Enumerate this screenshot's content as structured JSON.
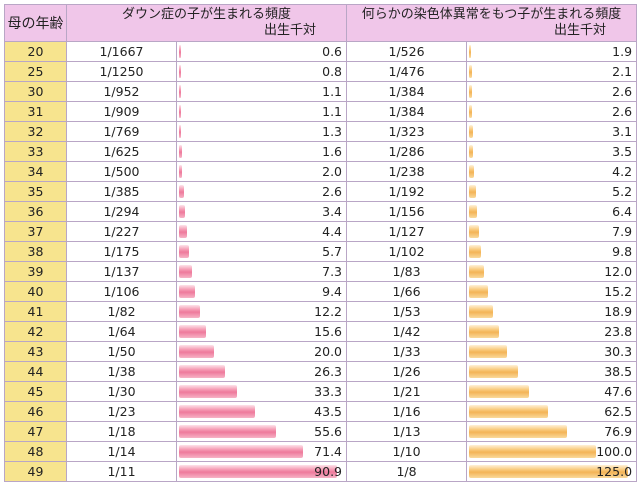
{
  "headers": {
    "age": "母の年齢",
    "down": "ダウン症の子が生まれる頻度",
    "other": "何らかの染色体異常をもつ子が生まれる頻度",
    "unit": "出生千対"
  },
  "colors": {
    "header_bg": "#f0c6e9",
    "age_bg": "#f7e48e",
    "down_bar": "#ee7a9c",
    "other_bar": "#f3b457"
  },
  "rows": [
    {
      "age": "20",
      "down_ratio": "1/1667",
      "down_value": "0.6",
      "other_ratio": "1/526",
      "other_value": "1.9"
    },
    {
      "age": "25",
      "down_ratio": "1/1250",
      "down_value": "0.8",
      "other_ratio": "1/476",
      "other_value": "2.1"
    },
    {
      "age": "30",
      "down_ratio": "1/952",
      "down_value": "1.1",
      "other_ratio": "1/384",
      "other_value": "2.6"
    },
    {
      "age": "31",
      "down_ratio": "1/909",
      "down_value": "1.1",
      "other_ratio": "1/384",
      "other_value": "2.6"
    },
    {
      "age": "32",
      "down_ratio": "1/769",
      "down_value": "1.3",
      "other_ratio": "1/323",
      "other_value": "3.1"
    },
    {
      "age": "33",
      "down_ratio": "1/625",
      "down_value": "1.6",
      "other_ratio": "1/286",
      "other_value": "3.5"
    },
    {
      "age": "34",
      "down_ratio": "1/500",
      "down_value": "2.0",
      "other_ratio": "1/238",
      "other_value": "4.2"
    },
    {
      "age": "35",
      "down_ratio": "1/385",
      "down_value": "2.6",
      "other_ratio": "1/192",
      "other_value": "5.2"
    },
    {
      "age": "36",
      "down_ratio": "1/294",
      "down_value": "3.4",
      "other_ratio": "1/156",
      "other_value": "6.4"
    },
    {
      "age": "37",
      "down_ratio": "1/227",
      "down_value": "4.4",
      "other_ratio": "1/127",
      "other_value": "7.9"
    },
    {
      "age": "38",
      "down_ratio": "1/175",
      "down_value": "5.7",
      "other_ratio": "1/102",
      "other_value": "9.8"
    },
    {
      "age": "39",
      "down_ratio": "1/137",
      "down_value": "7.3",
      "other_ratio": "1/83",
      "other_value": "12.0"
    },
    {
      "age": "40",
      "down_ratio": "1/106",
      "down_value": "9.4",
      "other_ratio": "1/66",
      "other_value": "15.2"
    },
    {
      "age": "41",
      "down_ratio": "1/82",
      "down_value": "12.2",
      "other_ratio": "1/53",
      "other_value": "18.9"
    },
    {
      "age": "42",
      "down_ratio": "1/64",
      "down_value": "15.6",
      "other_ratio": "1/42",
      "other_value": "23.8"
    },
    {
      "age": "43",
      "down_ratio": "1/50",
      "down_value": "20.0",
      "other_ratio": "1/33",
      "other_value": "30.3"
    },
    {
      "age": "44",
      "down_ratio": "1/38",
      "down_value": "26.3",
      "other_ratio": "1/26",
      "other_value": "38.5"
    },
    {
      "age": "45",
      "down_ratio": "1/30",
      "down_value": "33.3",
      "other_ratio": "1/21",
      "other_value": "47.6"
    },
    {
      "age": "46",
      "down_ratio": "1/23",
      "down_value": "43.5",
      "other_ratio": "1/16",
      "other_value": "62.5"
    },
    {
      "age": "47",
      "down_ratio": "1/18",
      "down_value": "55.6",
      "other_ratio": "1/13",
      "other_value": "76.9"
    },
    {
      "age": "48",
      "down_ratio": "1/14",
      "down_value": "71.4",
      "other_ratio": "1/10",
      "other_value": "100.0"
    },
    {
      "age": "49",
      "down_ratio": "1/11",
      "down_value": "90.9",
      "other_ratio": "1/8",
      "other_value": "125.0"
    }
  ]
}
